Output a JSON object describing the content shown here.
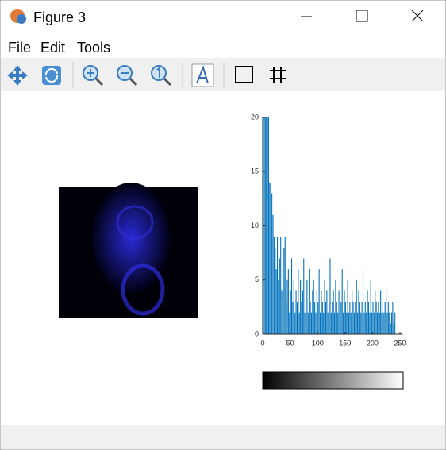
{
  "window": {
    "title": "Figure 3"
  },
  "menu": [
    "File",
    "Edit",
    "Tools"
  ],
  "chart_data": {
    "type": "histogram",
    "bins": [
      0,
      2,
      4,
      6,
      8,
      10,
      12,
      14,
      16,
      18,
      20,
      22,
      24,
      26,
      28,
      30,
      32,
      34,
      36,
      38,
      40,
      42,
      44,
      46,
      48,
      50,
      52,
      54,
      56,
      58,
      60,
      62,
      64,
      66,
      68,
      70,
      72,
      74,
      76,
      78,
      80,
      82,
      84,
      86,
      88,
      90,
      92,
      94,
      96,
      98,
      100,
      102,
      104,
      106,
      108,
      110,
      112,
      114,
      116,
      118,
      120,
      122,
      124,
      126,
      128,
      130,
      132,
      134,
      136,
      138,
      140,
      142,
      144,
      146,
      148,
      150,
      152,
      154,
      156,
      158,
      160,
      162,
      164,
      166,
      168,
      170,
      172,
      174,
      176,
      178,
      180,
      182,
      184,
      186,
      188,
      190,
      192,
      194,
      196,
      198,
      200,
      202,
      204,
      206,
      208,
      210,
      212,
      214,
      216,
      218,
      220,
      222,
      224,
      226,
      228,
      230,
      232,
      234,
      236,
      238,
      240,
      242,
      244,
      246,
      248,
      250
    ],
    "values": [
      20,
      20,
      20,
      20,
      20,
      20,
      14,
      14,
      13,
      11,
      9,
      8,
      6,
      9,
      5,
      7,
      9,
      4,
      6,
      8,
      9,
      3,
      5,
      6,
      2,
      4,
      7,
      3,
      5,
      2,
      4,
      3,
      6,
      2,
      5,
      3,
      4,
      7,
      2,
      3,
      5,
      2,
      6,
      3,
      2,
      4,
      5,
      3,
      2,
      4,
      3,
      6,
      2,
      4,
      3,
      2,
      5,
      3,
      4,
      2,
      3,
      7,
      2,
      3,
      4,
      2,
      5,
      3,
      2,
      4,
      2,
      3,
      6,
      2,
      4,
      3,
      2,
      5,
      2,
      3,
      2,
      4,
      3,
      2,
      3,
      5,
      2,
      4,
      3,
      2,
      3,
      6,
      2,
      3,
      2,
      4,
      3,
      2,
      5,
      2,
      3,
      2,
      4,
      3,
      2,
      3,
      2,
      4,
      2,
      3,
      2,
      3,
      4,
      2,
      3,
      2,
      1,
      2,
      3,
      1,
      2,
      0,
      0,
      0,
      0
    ],
    "color": "#0072bd",
    "xlim": [
      0,
      255
    ],
    "ylim": [
      0,
      20
    ],
    "xticks": [
      0,
      50,
      100,
      150,
      200,
      250
    ],
    "yticks": [
      0,
      5,
      10,
      15,
      20
    ]
  }
}
